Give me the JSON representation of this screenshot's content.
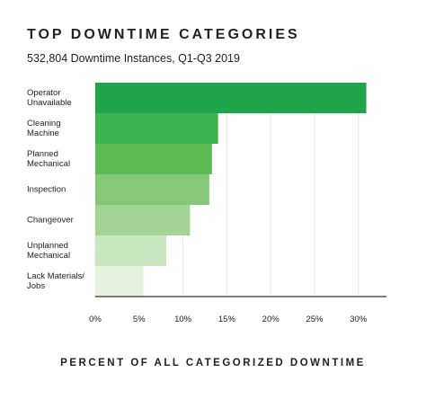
{
  "chart_data": {
    "type": "hbar",
    "title": "TOP DOWNTIME CATEGORIES",
    "subtitle": "532,804 Downtime Instances, Q1-Q3 2019",
    "x_label": "PERCENT OF ALL CATEGORIZED DOWNTIME",
    "categories": [
      "Operator\nUnavailable",
      "Cleaning\nMachine",
      "Planned\nMechanical",
      "Inspection",
      "Changeover",
      "Unplanned\nMechanical",
      "Lack Materials/\nJobs"
    ],
    "values": [
      30.9,
      14.0,
      13.3,
      13.0,
      10.8,
      8.1,
      5.5
    ],
    "colors": [
      "#1fa64a",
      "#3cb34e",
      "#5cbb52",
      "#86c878",
      "#a3d493",
      "#c8e6c0",
      "#e4f2df"
    ],
    "xlim": [
      0,
      33.2
    ],
    "xticks": [
      {
        "value": 0,
        "label": "0%"
      },
      {
        "value": 5,
        "label": "5%"
      },
      {
        "value": 10,
        "label": "10%"
      },
      {
        "value": 15,
        "label": "15%"
      },
      {
        "value": 20,
        "label": "20%"
      },
      {
        "value": 25,
        "label": "25%"
      },
      {
        "value": 30,
        "label": "30%"
      }
    ],
    "grid": true
  }
}
